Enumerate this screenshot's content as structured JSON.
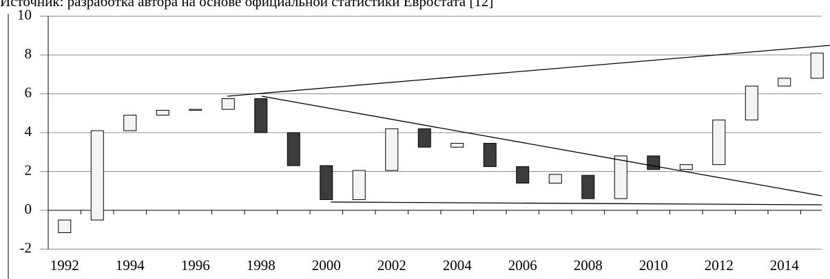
{
  "chart_data": {
    "type": "candlestick",
    "source": "Источник: разработка автора на основе официальной статистики Евростата [12]",
    "categories": [
      "1992",
      null,
      "1994",
      null,
      "1996",
      null,
      "1998",
      null,
      "2000",
      null,
      "2002",
      null,
      "2004",
      null,
      "2006",
      null,
      "2008",
      null,
      "2010",
      null,
      "2012",
      null,
      "2014",
      null
    ],
    "open": [
      -1.15,
      -0.5,
      4.1,
      4.9,
      5.15,
      5.2,
      5.75,
      4.0,
      2.3,
      0.55,
      2.05,
      4.2,
      3.25,
      3.45,
      2.25,
      1.4,
      1.8,
      0.6,
      2.8,
      2.1,
      2.35,
      4.65,
      6.4,
      6.8
    ],
    "close": [
      -0.5,
      4.1,
      4.9,
      5.15,
      5.2,
      5.75,
      4.0,
      2.3,
      0.55,
      2.05,
      4.2,
      3.25,
      3.45,
      2.25,
      1.4,
      1.85,
      0.6,
      2.8,
      2.1,
      2.35,
      4.65,
      6.4,
      6.8,
      8.1
    ],
    "up_color": "#f4f4f4",
    "down_color": "#3c3c3c",
    "ylim": [
      -2,
      10
    ],
    "yticks": [
      -2,
      0,
      2,
      4,
      6,
      8,
      10
    ],
    "grid": true
  }
}
